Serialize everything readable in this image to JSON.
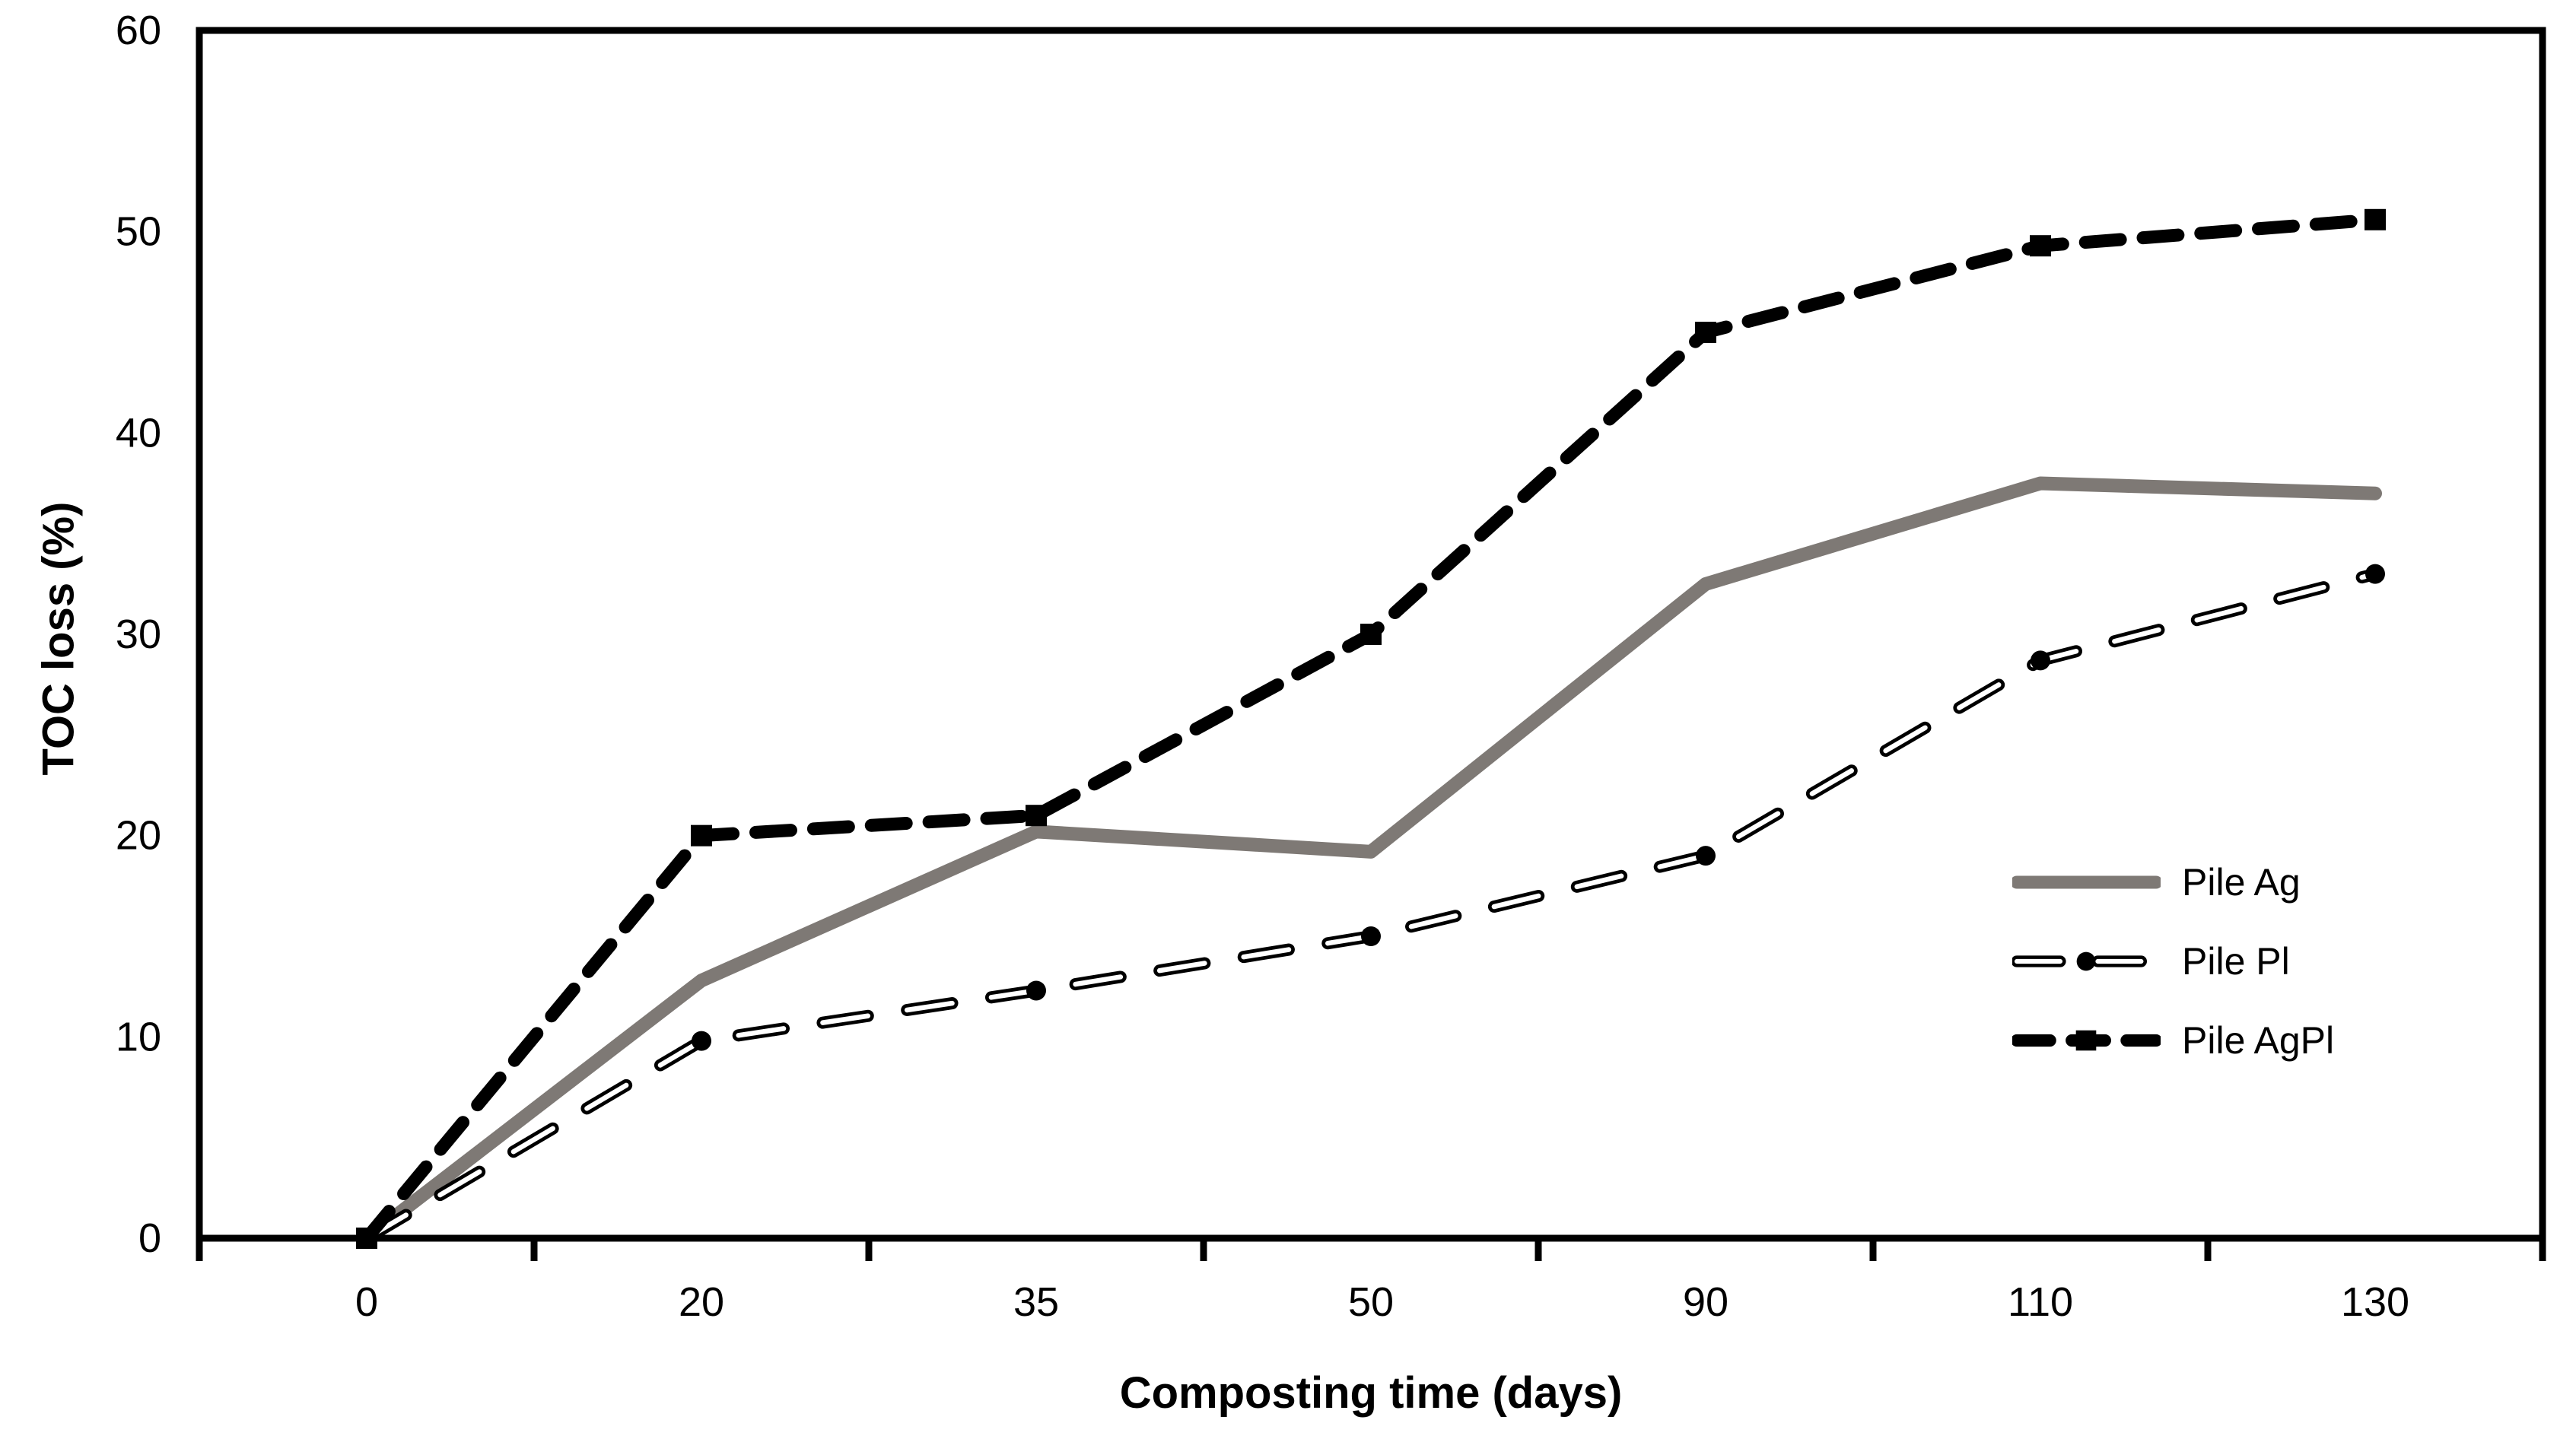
{
  "chart_data": {
    "type": "line",
    "title": "",
    "xlabel": "Composting time (days)",
    "ylabel": "TOC loss (%)",
    "x_axis_type": "categorical",
    "categories": [
      0,
      20,
      35,
      50,
      90,
      110,
      130
    ],
    "ylim": [
      0,
      60
    ],
    "yticks": [
      0,
      10,
      20,
      30,
      40,
      50,
      60
    ],
    "grid": false,
    "legend_position": "right-middle",
    "series": [
      {
        "name": "Pile Ag",
        "values": [
          0,
          12.8,
          20.2,
          19.2,
          32.5,
          37.5,
          37.0
        ],
        "color": "#7e7975",
        "line_style": "solid",
        "marker": "none"
      },
      {
        "name": "Pile Pl",
        "values": [
          0,
          9.8,
          12.3,
          15.0,
          19.0,
          28.7,
          33.0
        ],
        "color": "#000000",
        "line_style": "dash-outlined",
        "marker": "circle"
      },
      {
        "name": "Pile AgPl",
        "values": [
          0,
          20.0,
          21.0,
          30.0,
          45.0,
          49.3,
          50.6
        ],
        "color": "#000000",
        "line_style": "dash-thick",
        "marker": "square"
      }
    ],
    "axis_color": "#000000",
    "background": "#ffffff"
  }
}
